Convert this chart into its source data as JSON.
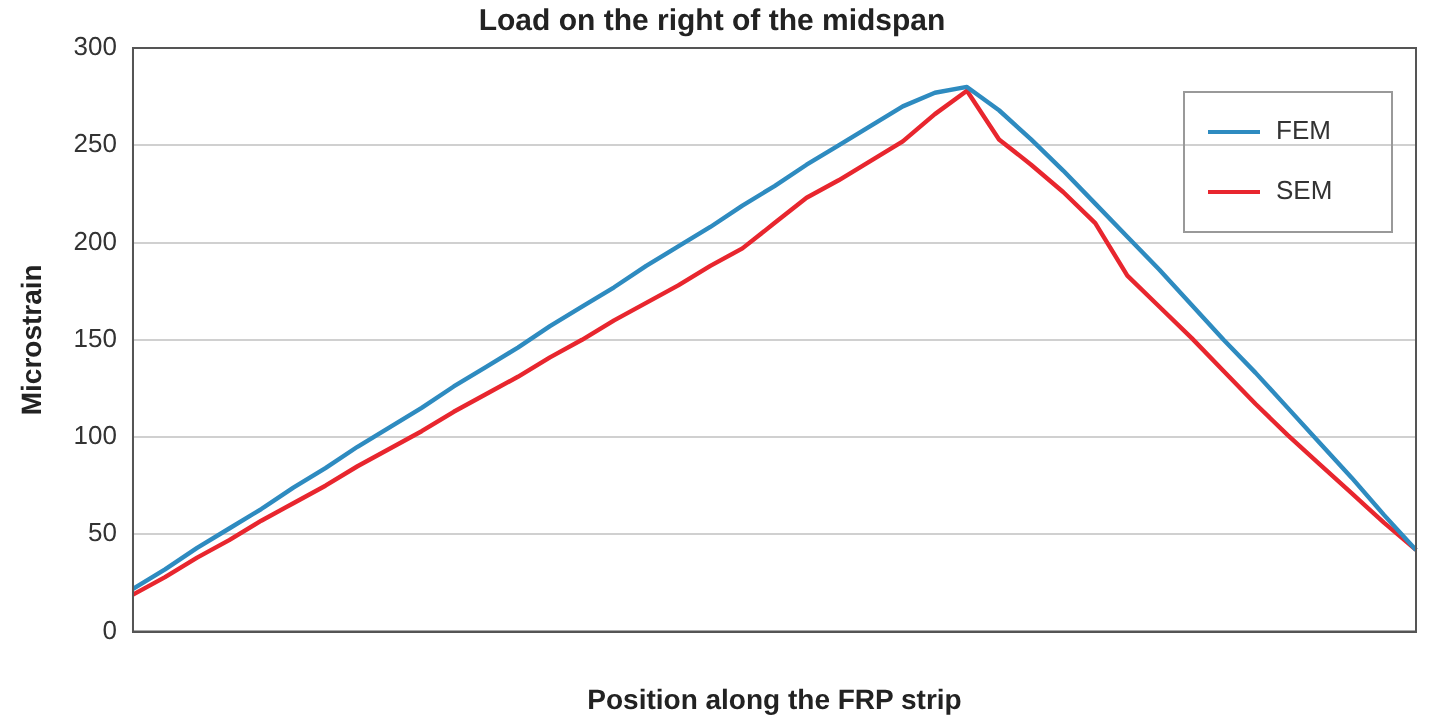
{
  "chart_data": {
    "type": "line",
    "title": "Load on the right of the midspan",
    "xlabel": "Position along the FRP strip",
    "ylabel": "Microstrain",
    "categories": [
      null,
      null,
      null,
      null,
      null,
      null,
      null,
      null,
      null,
      null,
      null,
      null,
      null,
      null,
      null,
      null,
      null,
      null,
      null,
      null,
      null,
      null,
      null,
      null,
      null,
      null,
      null,
      null,
      null,
      null,
      null,
      null,
      null,
      null,
      null,
      null,
      null,
      null,
      null,
      null,
      null
    ],
    "series": [
      {
        "name": "FEM",
        "color": "#2e8bc0",
        "values": [
          22,
          32,
          43,
          53,
          63,
          74,
          84,
          95,
          105,
          115,
          126,
          136,
          146,
          157,
          167,
          177,
          188,
          198,
          208,
          219,
          229,
          240,
          250,
          260,
          270,
          277,
          280,
          268,
          253,
          237,
          220,
          203,
          186,
          168,
          150,
          133,
          115,
          97,
          79,
          60,
          42
        ]
      },
      {
        "name": "SEM",
        "color": "#e8262e",
        "values": [
          19,
          28,
          38,
          47,
          57,
          66,
          75,
          85,
          94,
          103,
          113,
          122,
          131,
          141,
          150,
          160,
          169,
          178,
          188,
          197,
          210,
          223,
          232,
          242,
          252,
          266,
          278,
          253,
          240,
          226,
          210,
          183,
          167,
          151,
          134,
          117,
          101,
          86,
          71,
          56,
          42
        ]
      }
    ],
    "ylim": [
      0,
      300
    ],
    "yticks": [
      0,
      50,
      100,
      150,
      200,
      250,
      300
    ],
    "grid": "y",
    "legend": "top right",
    "marker": "none",
    "line_style": "solid"
  }
}
